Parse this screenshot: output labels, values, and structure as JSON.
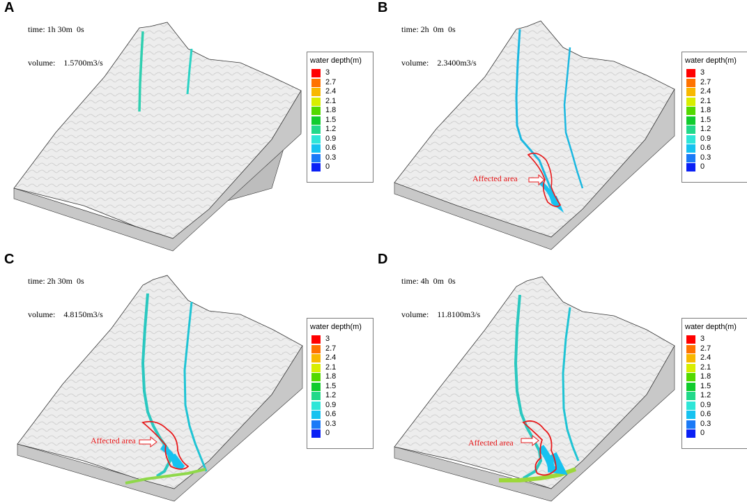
{
  "panels": [
    {
      "letter": "A",
      "time": "time: 1h 30m  0s",
      "volume": "volume:    1.5700m3/s",
      "affected_label": ""
    },
    {
      "letter": "B",
      "time": "time: 2h  0m  0s",
      "volume": "volume:    2.3400m3/s",
      "affected_label": "Affected area"
    },
    {
      "letter": "C",
      "time": "time: 2h 30m  0s",
      "volume": "volume:    4.8150m3/s",
      "affected_label": "Affected area"
    },
    {
      "letter": "D",
      "time": "time: 4h  0m  0s",
      "volume": "volume:    11.8100m3/s",
      "affected_label": "Affected area"
    }
  ],
  "legend": {
    "title": "water depth(m)",
    "items": [
      {
        "label": "3",
        "color": "#ff0000"
      },
      {
        "label": "2.7",
        "color": "#ff7200"
      },
      {
        "label": "2.4",
        "color": "#f8b800"
      },
      {
        "label": "2.1",
        "color": "#d8ee00"
      },
      {
        "label": "1.8",
        "color": "#53d900"
      },
      {
        "label": "1.5",
        "color": "#11cc2e"
      },
      {
        "label": "1.2",
        "color": "#22d98a"
      },
      {
        "label": "0.9",
        "color": "#2ee6d8"
      },
      {
        "label": "0.6",
        "color": "#16c2f0"
      },
      {
        "label": "0.3",
        "color": "#1b7af7"
      },
      {
        "label": "0",
        "color": "#0a20f5"
      }
    ]
  },
  "colors": {
    "affected_outline": "#e8191b",
    "terrain": "#ececec",
    "terrain_side": "#bdbdbd"
  }
}
